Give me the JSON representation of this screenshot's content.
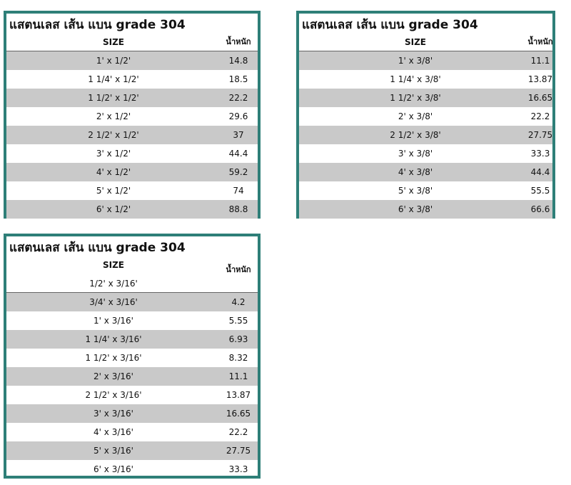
{
  "tables": [
    {
      "title": "แสตนเลส เส้น แบน grade 304",
      "header": {
        "size": "SIZE",
        "weight": "น้ำหนัก"
      },
      "rows": [
        {
          "size": "1' x 1/2'",
          "weight": "14.8"
        },
        {
          "size": "1 1/4' x 1/2'",
          "weight": "18.5"
        },
        {
          "size": "1 1/2' x 1/2'",
          "weight": "22.2"
        },
        {
          "size": "2' x 1/2'",
          "weight": "29.6"
        },
        {
          "size": "2 1/2' x 1/2'",
          "weight": "37"
        },
        {
          "size": "3' x 1/2'",
          "weight": "44.4"
        },
        {
          "size": "4' x 1/2'",
          "weight": "59.2"
        },
        {
          "size": "5' x 1/2'",
          "weight": "74"
        },
        {
          "size": "6' x 1/2'",
          "weight": "88.8"
        }
      ]
    },
    {
      "title": "แสตนเลส เส้น แบน grade 304",
      "header": {
        "size": "SIZE",
        "weight": "น้ำหนัก"
      },
      "rows": [
        {
          "size": "1' x 3/8'",
          "weight": "11.1"
        },
        {
          "size": "1 1/4' x 3/8'",
          "weight": "13.87"
        },
        {
          "size": "1 1/2' x 3/8'",
          "weight": "16.65"
        },
        {
          "size": "2' x 3/8'",
          "weight": "22.2"
        },
        {
          "size": "2 1/2' x 3/8'",
          "weight": "27.75"
        },
        {
          "size": "3' x 3/8'",
          "weight": "33.3"
        },
        {
          "size": "4' x 3/8'",
          "weight": "44.4"
        },
        {
          "size": "5' x 3/8'",
          "weight": "55.5"
        },
        {
          "size": "6' x 3/8'",
          "weight": "66.6"
        }
      ]
    },
    {
      "title": "แสตนเลส เส้น แบน grade 304",
      "header": {
        "size": "SIZE",
        "weight": "น้ำหนัก",
        "size_sub": "1/2' x 3/16'"
      },
      "rows": [
        {
          "size": "3/4' x 3/16'",
          "weight": "4.2"
        },
        {
          "size": "1' x 3/16'",
          "weight": "5.55"
        },
        {
          "size": "1 1/4' x 3/16'",
          "weight": "6.93"
        },
        {
          "size": "1 1/2' x 3/16'",
          "weight": "8.32"
        },
        {
          "size": "2' x 3/16'",
          "weight": "11.1"
        },
        {
          "size": "2 1/2' x 3/16'",
          "weight": "13.87"
        },
        {
          "size": "3' x 3/16'",
          "weight": "16.65"
        },
        {
          "size": "4' x 3/16'",
          "weight": "22.2"
        },
        {
          "size": "5' x 3/16'",
          "weight": "27.75"
        },
        {
          "size": "6' x 3/16'",
          "weight": "33.3"
        }
      ]
    }
  ]
}
